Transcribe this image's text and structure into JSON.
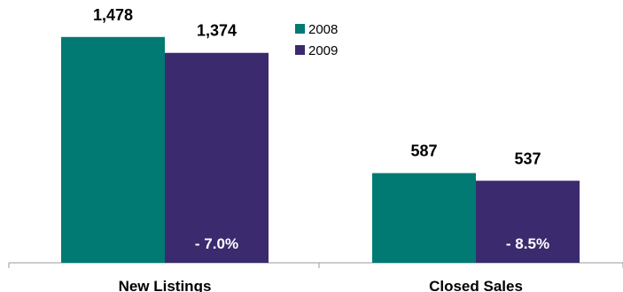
{
  "chart_data": {
    "type": "bar",
    "categories": [
      "New Listings",
      "Closed Sales"
    ],
    "series": [
      {
        "name": "2008",
        "values": [
          1478,
          587
        ],
        "value_labels": [
          "1,478",
          "587"
        ],
        "color": "#007a73"
      },
      {
        "name": "2009",
        "values": [
          1374,
          537
        ],
        "value_labels": [
          "1,374",
          "537"
        ],
        "color": "#3b2a6e"
      }
    ],
    "change_labels": [
      "- 7.0%",
      "- 8.5%"
    ],
    "legend_position": "top-center",
    "grid": false,
    "ylim": [
      0,
      1720
    ]
  }
}
